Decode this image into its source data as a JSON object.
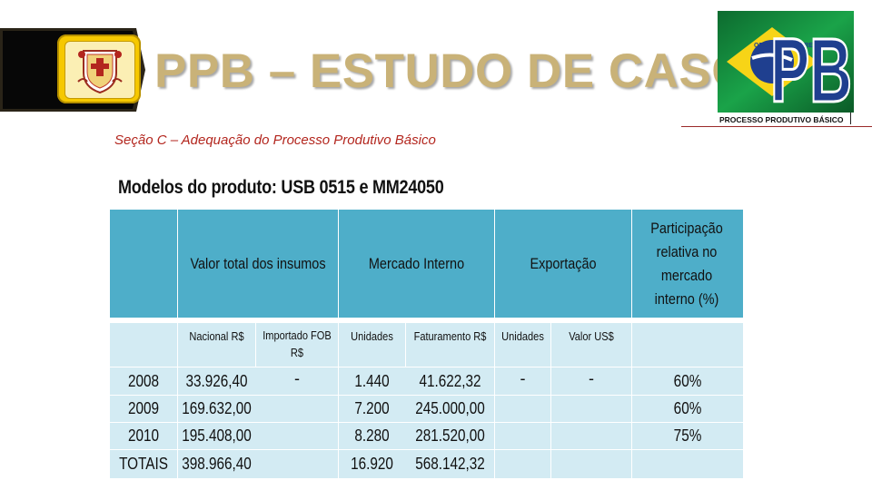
{
  "header": {
    "title": "PPB – ESTUDO DE CASO",
    "logo": {
      "badge_text": "ORDEM E PROGRESSO",
      "monogram": "PB",
      "caption": "PROCESSO PRODUTIVO BÁSICO",
      "colors": {
        "green": "#16a34a",
        "yellow": "#f7d417",
        "blue": "#1f3f8f"
      }
    },
    "crest_icon": "coat-of-arms-icon"
  },
  "subtitle": "Seção C – Adequação do Processo Produtivo Básico",
  "models_line": "Modelos do produto: USB 0515 e MM24050",
  "table": {
    "header_color": "#4eaec9",
    "body_color": "#d3ebf3",
    "groups": [
      {
        "label": "Valor total dos insumos"
      },
      {
        "label": "Mercado Interno"
      },
      {
        "label": "Exportação"
      },
      {
        "label": "Participação relativa no mercado interno (%)"
      }
    ],
    "subheaders": [
      "",
      "Nacional R$",
      "Importado FOB R$",
      "Unidades",
      "Faturamento R$",
      "Unidades",
      "Valor US$",
      ""
    ],
    "rows": [
      {
        "year": "2008",
        "nacional": "33.926,40",
        "importado": "-",
        "unidades_mi": "1.440",
        "faturamento": "41.622,32",
        "unidades_exp": "-",
        "valor_us": "-",
        "participacao": "60%"
      },
      {
        "year": "2009",
        "nacional": "169.632,00",
        "importado": "",
        "unidades_mi": "7.200",
        "faturamento": "245.000,00",
        "unidades_exp": "",
        "valor_us": "",
        "participacao": "60%"
      },
      {
        "year": "2010",
        "nacional": "195.408,00",
        "importado": "",
        "unidades_mi": "8.280",
        "faturamento": "281.520,00",
        "unidades_exp": "",
        "valor_us": "",
        "participacao": "75%"
      },
      {
        "year": "TOTAIS",
        "nacional": "398.966,40",
        "importado": "",
        "unidades_mi": "16.920",
        "faturamento": "568.142,32",
        "unidades_exp": "",
        "valor_us": "",
        "participacao": ""
      }
    ]
  }
}
